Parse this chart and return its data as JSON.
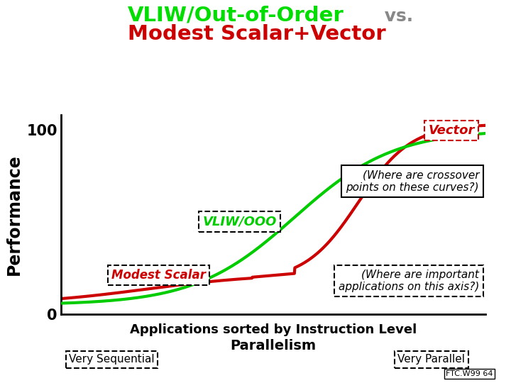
{
  "title_line1": "VLIW/Out-of-Order",
  "title_vs": "vs.",
  "title_line2": "Modest Scalar+Vector",
  "title_line1_color": "#00dd00",
  "title_vs_color": "#888888",
  "title_line2_color": "#cc0000",
  "background_color": "#ffffff",
  "ylabel": "Performance",
  "xlabel_main": "Applications sorted by Instruction Level",
  "xlabel_sub": "Parallelism",
  "xlabel_left": "Very Sequential",
  "xlabel_right": "Very Parallel",
  "vector_label": "Vector",
  "vliw_label": "VLIW/OOO",
  "modest_label": "Modest Scalar",
  "crossover_text": "(Where are crossover\npoints on these curves?)",
  "important_text": "(Where are important\napplications on this axis?)",
  "footnote": "FTC.W99 64",
  "green_color": "#00cc00",
  "red_color": "#cc0000",
  "xlim": [
    0,
    10
  ],
  "ylim": [
    0,
    108
  ]
}
